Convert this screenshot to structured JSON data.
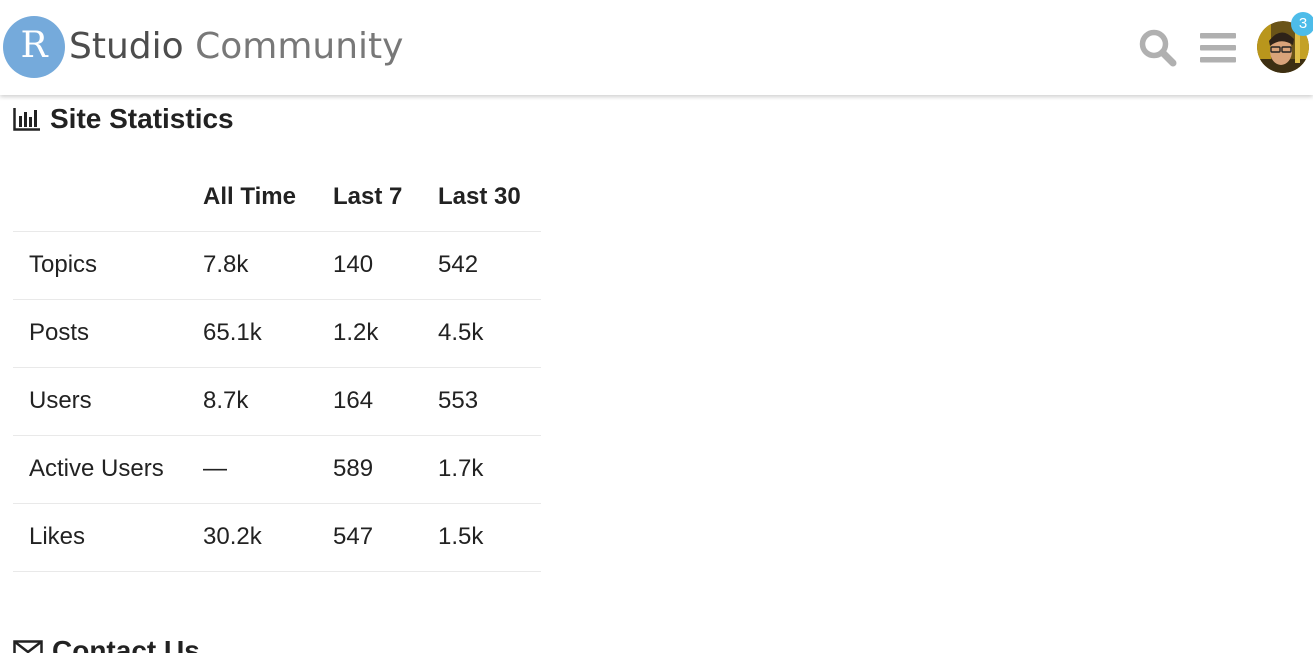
{
  "header": {
    "logo": {
      "letter": "R",
      "name_primary": "Studio",
      "name_secondary": "Community",
      "brand_color": "#75aadb"
    },
    "icons": {
      "search": "search-icon",
      "menu": "hamburger-menu-icon",
      "avatar": "user-avatar"
    },
    "notification_count": "3",
    "badge_color": "#4dbce9"
  },
  "stats": {
    "title": "Site Statistics",
    "icon": "bar-chart-icon",
    "columns": [
      "All Time",
      "Last 7",
      "Last 30"
    ],
    "rows": [
      {
        "label": "Topics",
        "all_time": "7.8k",
        "last_7": "140",
        "last_30": "542"
      },
      {
        "label": "Posts",
        "all_time": "65.1k",
        "last_7": "1.2k",
        "last_30": "4.5k"
      },
      {
        "label": "Users",
        "all_time": "8.7k",
        "last_7": "164",
        "last_30": "553"
      },
      {
        "label": "Active Users",
        "all_time": "—",
        "last_7": "589",
        "last_30": "1.7k"
      },
      {
        "label": "Likes",
        "all_time": "30.2k",
        "last_7": "547",
        "last_30": "1.5k"
      }
    ]
  },
  "contact": {
    "title": "Contact Us",
    "icon": "envelope-icon"
  }
}
